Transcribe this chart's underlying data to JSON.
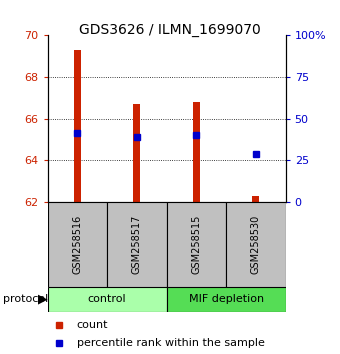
{
  "title": "GDS3626 / ILMN_1699070",
  "samples": [
    "GSM258516",
    "GSM258517",
    "GSM258515",
    "GSM258530"
  ],
  "bar_bottoms": [
    62.0,
    62.0,
    62.0,
    62.0
  ],
  "bar_tops": [
    69.3,
    66.7,
    66.8,
    62.3
  ],
  "percentile_values": [
    65.3,
    65.1,
    65.2,
    64.3
  ],
  "ylim_left": [
    62,
    70
  ],
  "ylim_right": [
    0,
    100
  ],
  "yticks_left": [
    62,
    64,
    66,
    68,
    70
  ],
  "yticks_right": [
    0,
    25,
    50,
    75,
    100
  ],
  "ytick_labels_right": [
    "0",
    "25",
    "50",
    "75",
    "100%"
  ],
  "bar_color": "#CC2200",
  "percentile_color": "#0000CC",
  "left_tick_color": "#CC2200",
  "right_tick_color": "#0000CC",
  "sample_box_color": "#C0C0C0",
  "group_boundaries": [
    [
      0,
      2,
      "control",
      "#AAFFAA"
    ],
    [
      2,
      4,
      "MIF depletion",
      "#55DD55"
    ]
  ],
  "gridline_ticks": [
    64,
    66,
    68
  ],
  "bar_width": 0.12,
  "x_positions": [
    0.5,
    1.5,
    2.5,
    3.5
  ],
  "x_lim": [
    0,
    4
  ],
  "title_fontsize": 10,
  "tick_fontsize": 8,
  "label_fontsize": 7,
  "group_fontsize": 8,
  "legend_fontsize": 8
}
